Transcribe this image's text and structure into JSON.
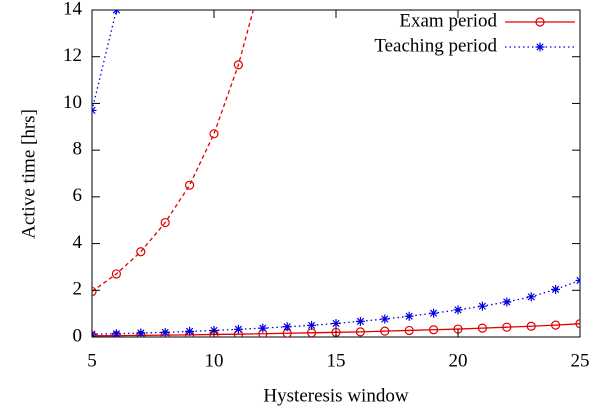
{
  "chart_data": {
    "type": "line",
    "x_label": "Hysteresis window",
    "y_label": "Active time [hrs]",
    "xlim": [
      5,
      25
    ],
    "xticks": [
      5,
      10,
      15,
      20,
      25
    ],
    "ylim": [
      0,
      14
    ],
    "yticks": [
      0,
      2,
      4,
      6,
      8,
      10,
      12,
      14
    ],
    "legend": "top-right",
    "series": [
      {
        "name": "Exam period",
        "color": "#e00000",
        "dash": "solid",
        "marker": "circle",
        "x": [
          5,
          6,
          7,
          8,
          9,
          10,
          11,
          12,
          13,
          14,
          15,
          16,
          17,
          18,
          19,
          20,
          21,
          22,
          23,
          24,
          25
        ],
        "values": [
          0.05,
          0.06,
          0.07,
          0.08,
          0.09,
          0.11,
          0.12,
          0.14,
          0.16,
          0.18,
          0.2,
          0.22,
          0.25,
          0.28,
          0.31,
          0.34,
          0.38,
          0.42,
          0.46,
          0.51,
          0.57
        ]
      },
      {
        "name": "Teaching period",
        "color": "#0000e0",
        "dash": "dotted",
        "marker": "star",
        "x": [
          5,
          6,
          7,
          8,
          9,
          10,
          11,
          12,
          13,
          14,
          15,
          16,
          17,
          18,
          19,
          20,
          21,
          22,
          23,
          24,
          25
        ],
        "values": [
          0.12,
          0.14,
          0.17,
          0.2,
          0.24,
          0.28,
          0.33,
          0.38,
          0.44,
          0.5,
          0.58,
          0.67,
          0.77,
          0.89,
          1.02,
          1.16,
          1.32,
          1.5,
          1.72,
          2.04,
          2.42
        ]
      },
      {
        "color": "#e00000",
        "dash": "dashed",
        "marker": "circle",
        "x": [
          5,
          6,
          7,
          8,
          9,
          10,
          11,
          12
        ],
        "values": [
          1.95,
          2.7,
          3.65,
          4.9,
          6.5,
          8.7,
          11.65,
          15.5
        ]
      },
      {
        "color": "#0000e0",
        "dash": "dotted",
        "marker": "star",
        "x": [
          5,
          6
        ],
        "values": [
          9.7,
          14.0
        ]
      }
    ]
  }
}
